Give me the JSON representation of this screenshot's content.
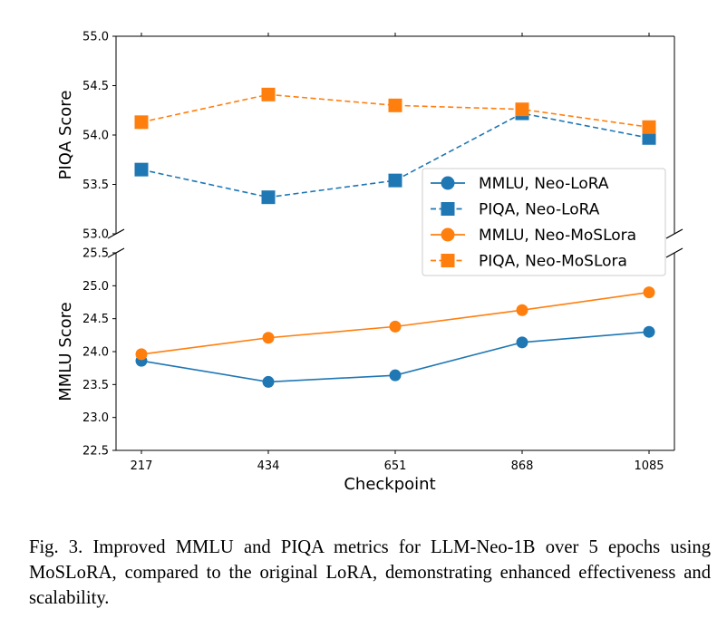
{
  "chart_data": {
    "type": "line",
    "broken_axis": true,
    "x": [
      "217",
      "434",
      "651",
      "868",
      "1085"
    ],
    "xlabel": "Checkpoint",
    "panels": [
      {
        "id": "top",
        "ylabel": "PIQA Score",
        "ylim": [
          53.0,
          55.0
        ],
        "yticks": [
          "53.0",
          "53.5",
          "54.0",
          "54.5",
          "55.0"
        ],
        "series": [
          {
            "name": "PIQA, Neo-LoRA",
            "values": [
              53.65,
              53.37,
              53.54,
              54.22,
              53.97
            ],
            "color": "#1f77b4",
            "marker": "square",
            "linestyle": "dashed"
          },
          {
            "name": "PIQA, Neo-MoSLora",
            "values": [
              54.13,
              54.41,
              54.3,
              54.26,
              54.08
            ],
            "color": "#ff7f0e",
            "marker": "square",
            "linestyle": "dashed"
          }
        ]
      },
      {
        "id": "bottom",
        "ylabel": "MMLU Score",
        "ylim": [
          22.5,
          25.5
        ],
        "yticks": [
          "22.5",
          "23.0",
          "23.5",
          "24.0",
          "24.5",
          "25.0",
          "25.5"
        ],
        "series": [
          {
            "name": "MMLU, Neo-LoRA",
            "values": [
              23.86,
              23.54,
              23.64,
              24.14,
              24.3
            ],
            "color": "#1f77b4",
            "marker": "circle",
            "linestyle": "solid"
          },
          {
            "name": "MMLU, Neo-MoSLora",
            "values": [
              23.96,
              24.21,
              24.38,
              24.63,
              24.9
            ],
            "color": "#ff7f0e",
            "marker": "circle",
            "linestyle": "solid"
          }
        ]
      }
    ],
    "legend": {
      "placement": "center-right",
      "entries": [
        {
          "label": "MMLU, Neo-LoRA",
          "color": "#1f77b4",
          "marker": "circle",
          "linestyle": "solid"
        },
        {
          "label": "PIQA, Neo-LoRA",
          "color": "#1f77b4",
          "marker": "square",
          "linestyle": "dashed"
        },
        {
          "label": "MMLU, Neo-MoSLora",
          "color": "#ff7f0e",
          "marker": "circle",
          "linestyle": "solid"
        },
        {
          "label": "PIQA, Neo-MoSLora",
          "color": "#ff7f0e",
          "marker": "square",
          "linestyle": "dashed"
        }
      ]
    }
  },
  "caption": {
    "text": "Fig. 3.   Improved MMLU and PIQA metrics for LLM-Neo-1B over 5 epochs using MoSLoRA, compared to the original LoRA, demonstrating enhanced effectiveness and scalability."
  }
}
